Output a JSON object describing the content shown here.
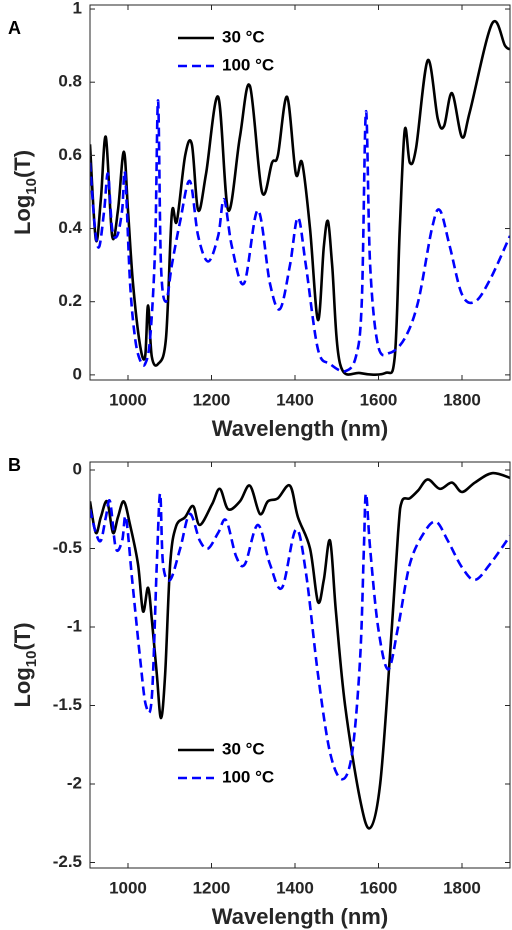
{
  "chart_data": [
    {
      "type": "line",
      "label": "A",
      "xlabel": "Wavelength (nm)",
      "ylabel": [
        "Log",
        "10",
        "(T)"
      ],
      "xlim": [
        909,
        1915
      ],
      "xticks": [
        1000,
        1200,
        1400,
        1600,
        1800
      ],
      "ylim": [
        -0.014,
        1.011
      ],
      "yticks": [
        0,
        0.2,
        0.4,
        0.6,
        0.8,
        1
      ],
      "legend": "north west",
      "series": [
        {
          "name": "30 °C",
          "color": "#000000",
          "dash": false,
          "x": [
            909,
            923,
            935,
            947,
            962,
            976,
            990,
            1000,
            1012,
            1029,
            1041,
            1048,
            1057,
            1072,
            1091,
            1105,
            1117,
            1137,
            1153,
            1168,
            1187,
            1216,
            1240,
            1268,
            1292,
            1321,
            1345,
            1359,
            1381,
            1402,
            1417,
            1436,
            1455,
            1469,
            1479,
            1489,
            1508,
            1556,
            1616,
            1639,
            1651,
            1663,
            1675,
            1690,
            1718,
            1742,
            1757,
            1776,
            1800,
            1819,
            1872,
            1903,
            1915
          ],
          "values": [
            0.63,
            0.37,
            0.48,
            0.65,
            0.38,
            0.45,
            0.61,
            0.45,
            0.25,
            0.08,
            0.05,
            0.19,
            0.05,
            0.03,
            0.1,
            0.44,
            0.42,
            0.6,
            0.63,
            0.45,
            0.55,
            0.76,
            0.45,
            0.65,
            0.79,
            0.5,
            0.58,
            0.6,
            0.76,
            0.55,
            0.58,
            0.4,
            0.15,
            0.35,
            0.42,
            0.3,
            0.03,
            0.005,
            0.005,
            0.05,
            0.4,
            0.67,
            0.58,
            0.62,
            0.86,
            0.7,
            0.68,
            0.77,
            0.65,
            0.72,
            0.96,
            0.9,
            0.89
          ]
        },
        {
          "name": "100 °C",
          "color": "#0000ff",
          "dash": true,
          "x": [
            909,
            921,
            931,
            943,
            952,
            962,
            974,
            986,
            993,
            1005,
            1017,
            1029,
            1041,
            1053,
            1065,
            1072,
            1079,
            1091,
            1105,
            1125,
            1148,
            1168,
            1192,
            1216,
            1230,
            1249,
            1278,
            1311,
            1340,
            1364,
            1388,
            1407,
            1426,
            1455,
            1484,
            1520,
            1546,
            1560,
            1570,
            1580,
            1599,
            1627,
            1663,
            1695,
            1728,
            1747,
            1771,
            1800,
            1831,
            1867,
            1915
          ],
          "values": [
            0.58,
            0.4,
            0.35,
            0.45,
            0.55,
            0.4,
            0.38,
            0.45,
            0.55,
            0.25,
            0.1,
            0.04,
            0.03,
            0.1,
            0.35,
            0.75,
            0.3,
            0.2,
            0.3,
            0.42,
            0.53,
            0.38,
            0.31,
            0.38,
            0.48,
            0.35,
            0.25,
            0.45,
            0.25,
            0.18,
            0.3,
            0.43,
            0.3,
            0.07,
            0.03,
            0.01,
            0.05,
            0.2,
            0.72,
            0.3,
            0.08,
            0.06,
            0.1,
            0.2,
            0.4,
            0.45,
            0.35,
            0.22,
            0.2,
            0.26,
            0.38
          ]
        }
      ]
    },
    {
      "type": "line",
      "label": "B",
      "xlabel": "Wavelength (nm)",
      "ylabel": [
        "Log",
        "10",
        "(T)"
      ],
      "xlim": [
        909,
        1915
      ],
      "xticks": [
        1000,
        1200,
        1400,
        1600,
        1800
      ],
      "ylim": [
        -2.535,
        0.051
      ],
      "yticks": [
        0,
        -0.5,
        -1,
        -1.5,
        -2,
        -2.5
      ],
      "legend": "south",
      "series": [
        {
          "name": "30 °C",
          "color": "#000000",
          "dash": false,
          "x": [
            909,
            923,
            935,
            950,
            964,
            976,
            990,
            1005,
            1024,
            1036,
            1048,
            1057,
            1069,
            1079,
            1089,
            1101,
            1115,
            1137,
            1156,
            1172,
            1201,
            1220,
            1240,
            1268,
            1292,
            1316,
            1335,
            1359,
            1388,
            1407,
            1436,
            1455,
            1469,
            1484,
            1498,
            1520,
            1556,
            1580,
            1604,
            1627,
            1647,
            1656,
            1675,
            1695,
            1718,
            1747,
            1776,
            1800,
            1831,
            1872,
            1915
          ],
          "values": [
            -0.2,
            -0.4,
            -0.3,
            -0.2,
            -0.4,
            -0.3,
            -0.2,
            -0.35,
            -0.6,
            -0.9,
            -0.75,
            -0.95,
            -1.3,
            -1.58,
            -1.3,
            -0.6,
            -0.36,
            -0.3,
            -0.23,
            -0.35,
            -0.22,
            -0.12,
            -0.25,
            -0.2,
            -0.1,
            -0.28,
            -0.2,
            -0.18,
            -0.1,
            -0.3,
            -0.5,
            -0.84,
            -0.7,
            -0.45,
            -0.9,
            -1.5,
            -2.1,
            -2.28,
            -2.0,
            -1.2,
            -0.4,
            -0.2,
            -0.18,
            -0.13,
            -0.06,
            -0.12,
            -0.08,
            -0.14,
            -0.08,
            -0.02,
            -0.05
          ]
        },
        {
          "name": "100 °C",
          "color": "#0000ff",
          "dash": true,
          "x": [
            909,
            923,
            935,
            947,
            957,
            971,
            986,
            995,
            1010,
            1029,
            1043,
            1057,
            1069,
            1077,
            1084,
            1101,
            1125,
            1148,
            1172,
            1192,
            1216,
            1235,
            1259,
            1280,
            1311,
            1340,
            1369,
            1402,
            1426,
            1455,
            1484,
            1513,
            1537,
            1556,
            1565,
            1570,
            1580,
            1599,
            1623,
            1647,
            1675,
            1709,
            1738,
            1766,
            1800,
            1831,
            1867,
            1915
          ],
          "values": [
            -0.25,
            -0.4,
            -0.45,
            -0.3,
            -0.2,
            -0.5,
            -0.45,
            -0.3,
            -0.7,
            -1.2,
            -1.5,
            -1.45,
            -0.6,
            -0.15,
            -0.6,
            -0.7,
            -0.5,
            -0.28,
            -0.45,
            -0.5,
            -0.4,
            -0.32,
            -0.55,
            -0.6,
            -0.35,
            -0.6,
            -0.75,
            -0.38,
            -0.65,
            -1.3,
            -1.8,
            -1.97,
            -1.8,
            -1.2,
            -0.5,
            -0.15,
            -0.5,
            -1.0,
            -1.27,
            -1.0,
            -0.6,
            -0.4,
            -0.33,
            -0.45,
            -0.62,
            -0.7,
            -0.6,
            -0.42
          ]
        }
      ]
    }
  ]
}
